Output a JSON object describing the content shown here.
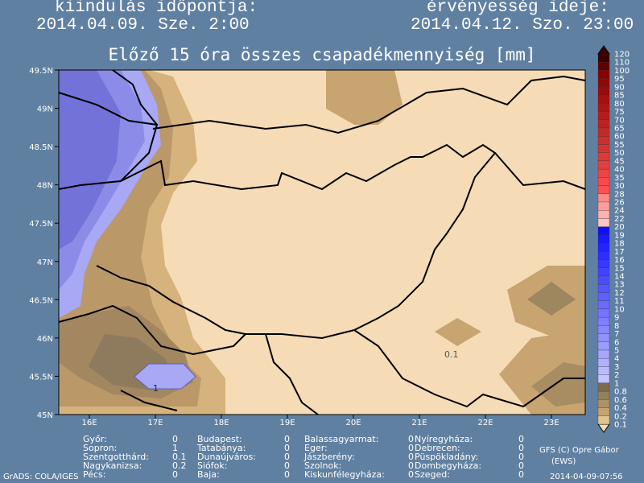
{
  "header": {
    "start_label": "kiindulás időpontja:",
    "start_time": "2014.04.09. Sze. 2:00",
    "valid_label": "érvényesség ideje:",
    "valid_time": "2014.04.12. Szo. 23:00"
  },
  "map": {
    "title": "Előző 15 óra összes csapadékmennyiség [mm]",
    "lat_labels": [
      "49.5N",
      "49N",
      "48.5N",
      "48N",
      "47.5N",
      "47N",
      "46.5N",
      "46N",
      "45.5N",
      "45N"
    ],
    "lon_labels": [
      "16E",
      "17E",
      "18E",
      "19E",
      "20E",
      "21E",
      "22E",
      "23E"
    ],
    "contour_labels": [
      "1",
      "0.1"
    ]
  },
  "colorbar": {
    "labels": [
      "120",
      "110",
      "100",
      "95",
      "90",
      "85",
      "80",
      "75",
      "70",
      "65",
      "60",
      "55",
      "50",
      "45",
      "40",
      "35",
      "30",
      "28",
      "26",
      "24",
      "22",
      "20",
      "19",
      "18",
      "17",
      "16",
      "15",
      "14",
      "13",
      "12",
      "11",
      "10",
      "9",
      "8",
      "7",
      "6",
      "5",
      "4",
      "3",
      "2",
      "1",
      "0.8",
      "0.6",
      "0.4",
      "0.2",
      "0.1"
    ]
  },
  "stations": {
    "columns": [
      [
        {
          "name": "Győr:",
          "value": 0
        },
        {
          "name": "Sopron:",
          "value": 1
        },
        {
          "name": "Szentgotthárd:",
          "value": 0.1
        },
        {
          "name": "Nagykanizsa:",
          "value": 0.2
        },
        {
          "name": "Pécs:",
          "value": 0
        }
      ],
      [
        {
          "name": "Budapest:",
          "value": 0
        },
        {
          "name": "Tatabánya:",
          "value": 0
        },
        {
          "name": "Dunaújváros:",
          "value": 0
        },
        {
          "name": "Siófok:",
          "value": 0
        },
        {
          "name": "Baja:",
          "value": 0
        }
      ],
      [
        {
          "name": "Balassagyarmat:",
          "value": 0
        },
        {
          "name": "Eger:",
          "value": 0
        },
        {
          "name": "Jászberény:",
          "value": 0
        },
        {
          "name": "Szolnok:",
          "value": 0
        },
        {
          "name": "Kiskunfélegyháza:",
          "value": 0
        }
      ],
      [
        {
          "name": "Nyíregyháza:",
          "value": 0
        },
        {
          "name": "Debrecen:",
          "value": 0
        },
        {
          "name": "Püspökladány:",
          "value": 0
        },
        {
          "name": "Dombegyháza:",
          "value": 0
        },
        {
          "name": "Szeged:",
          "value": 0
        }
      ]
    ]
  },
  "footer": {
    "grads": "GrADS: COLA/IGES",
    "credit": "GFS (C) Opre Gábor",
    "credit2": "(EWS)",
    "timestamp": "2014-04-09-07:56"
  }
}
